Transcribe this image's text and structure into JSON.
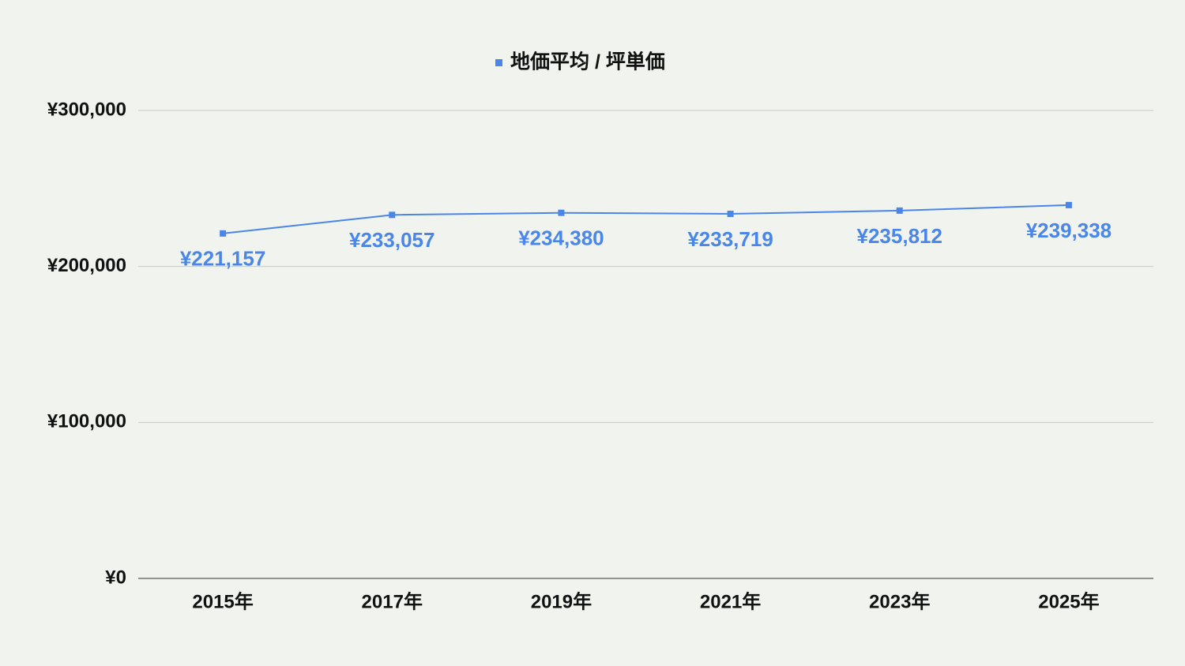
{
  "chart_data": {
    "type": "line",
    "categories": [
      "2015年",
      "2017年",
      "2019年",
      "2021年",
      "2023年",
      "2025年"
    ],
    "series": [
      {
        "name": "地価平均 / 坪単価",
        "color": "#4a86e8",
        "values": [
          221157,
          233057,
          234380,
          233719,
          235812,
          239338
        ],
        "value_labels": [
          "¥221,157",
          "¥233,057",
          "¥234,380",
          "¥233,719",
          "¥235,812",
          "¥239,338"
        ]
      }
    ],
    "ylim": [
      0,
      300000
    ],
    "yticks": [
      {
        "value": 0,
        "label": "¥0"
      },
      {
        "value": 100000,
        "label": "¥100,000"
      },
      {
        "value": 200000,
        "label": "¥200,000"
      },
      {
        "value": 300000,
        "label": "¥300,000"
      }
    ],
    "grid": true,
    "legend": "top"
  }
}
